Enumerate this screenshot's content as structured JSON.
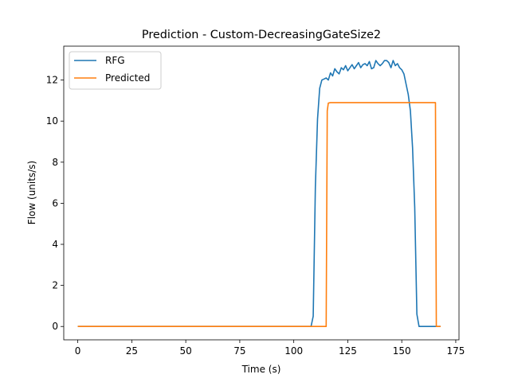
{
  "chart_data": {
    "type": "line",
    "title": "Prediction - Custom-DecreasingGateSize2",
    "xlabel": "Time (s)",
    "ylabel": "Flow (units/s)",
    "xlim": [
      -6.5,
      176.5
    ],
    "ylim": [
      -0.65,
      13.65
    ],
    "xticks": [
      0,
      25,
      50,
      75,
      100,
      125,
      150,
      175
    ],
    "yticks": [
      0,
      2,
      4,
      6,
      8,
      10,
      12
    ],
    "grid": false,
    "legend_position": "top-left",
    "series": [
      {
        "name": "RFG",
        "color": "#1f77b4",
        "x": [
          0,
          100,
          108,
          109,
          110,
          111,
          112,
          113,
          114,
          115,
          116,
          117,
          118,
          119,
          120,
          121,
          122,
          123,
          124,
          125,
          126,
          127,
          128,
          129,
          130,
          131,
          132,
          133,
          134,
          135,
          136,
          137,
          138,
          139,
          140,
          141,
          142,
          143,
          144,
          145,
          146,
          147,
          148,
          149,
          150,
          151,
          152,
          153,
          154,
          155,
          156,
          157,
          158,
          160,
          168
        ],
        "y": [
          0,
          0,
          0,
          0.5,
          6.8,
          10.1,
          11.6,
          12.0,
          12.05,
          12.1,
          12.0,
          12.35,
          12.2,
          12.55,
          12.4,
          12.3,
          12.6,
          12.5,
          12.7,
          12.45,
          12.6,
          12.75,
          12.55,
          12.7,
          12.85,
          12.6,
          12.75,
          12.8,
          12.7,
          12.9,
          12.55,
          12.6,
          12.95,
          12.8,
          12.7,
          12.8,
          12.95,
          12.95,
          12.85,
          12.6,
          12.95,
          12.7,
          12.8,
          12.6,
          12.5,
          12.3,
          11.8,
          11.3,
          10.5,
          8.7,
          5.8,
          0.6,
          0,
          0,
          0
        ]
      },
      {
        "name": "Predicted",
        "color": "#ff7f0e",
        "x": [
          0,
          115,
          115.5,
          116,
          117,
          165,
          165.6,
          166,
          168
        ],
        "y": [
          0,
          0,
          10.5,
          10.88,
          10.9,
          10.9,
          10.9,
          0,
          0
        ]
      }
    ]
  }
}
